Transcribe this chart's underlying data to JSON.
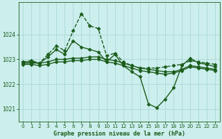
{
  "title": "Graphe pression niveau de la mer (hPa)",
  "bg_color": "#cceeed",
  "grid_color": "#aad8d8",
  "line_color": "#1a5c1a",
  "xlim": [
    -0.5,
    23.5
  ],
  "ylim": [
    1020.5,
    1025.3
  ],
  "yticks": [
    1021,
    1022,
    1023,
    1024
  ],
  "xticks": [
    0,
    1,
    2,
    3,
    4,
    5,
    6,
    7,
    8,
    9,
    10,
    11,
    12,
    13,
    14,
    15,
    16,
    17,
    18,
    19,
    20,
    21,
    22,
    23
  ],
  "series": [
    {
      "x": [
        0,
        1,
        2,
        3,
        4,
        5,
        6,
        7,
        8,
        9,
        10,
        11,
        12,
        13,
        14,
        15,
        16,
        17,
        18,
        19,
        20,
        21,
        22,
        23
      ],
      "y": [
        1022.9,
        1022.95,
        1022.85,
        1023.2,
        1023.55,
        1023.35,
        1024.15,
        1024.85,
        1024.35,
        1024.25,
        1023.15,
        1023.25,
        1022.9,
        1022.75,
        1022.65,
        1022.65,
        1022.65,
        1022.7,
        1022.75,
        1022.8,
        1022.95,
        1022.9,
        1022.85,
        1022.8
      ],
      "marker": "D",
      "markersize": 2.5,
      "linewidth": 1.0,
      "linestyle": "--"
    },
    {
      "x": [
        0,
        1,
        2,
        3,
        4,
        5,
        6,
        7,
        8,
        9,
        10,
        11,
        12,
        13,
        14,
        15,
        16,
        17,
        18,
        19,
        20,
        21,
        22,
        23
      ],
      "y": [
        1022.9,
        1022.9,
        1022.85,
        1023.1,
        1023.4,
        1023.2,
        1023.75,
        1023.5,
        1023.4,
        1023.3,
        1022.9,
        1023.2,
        1022.75,
        1022.5,
        1022.3,
        1021.2,
        1021.05,
        1021.4,
        1021.85,
        1022.75,
        1023.05,
        1022.85,
        1022.8,
        1022.7
      ],
      "marker": "D",
      "markersize": 2.5,
      "linewidth": 1.0,
      "linestyle": "-"
    },
    {
      "x": [
        0,
        1,
        2,
        3,
        4,
        5,
        6,
        7,
        8,
        9,
        10,
        11,
        12,
        13,
        14,
        15,
        16,
        17,
        18,
        19,
        20,
        21,
        22,
        23
      ],
      "y": [
        1022.85,
        1022.85,
        1022.85,
        1022.9,
        1023.0,
        1023.0,
        1023.05,
        1023.05,
        1023.1,
        1023.1,
        1023.0,
        1022.95,
        1022.85,
        1022.75,
        1022.65,
        1022.6,
        1022.55,
        1022.5,
        1022.5,
        1022.6,
        1022.75,
        1022.7,
        1022.65,
        1022.6
      ],
      "marker": "D",
      "markersize": 2.5,
      "linewidth": 1.0,
      "linestyle": "-"
    },
    {
      "x": [
        0,
        1,
        2,
        3,
        4,
        5,
        6,
        7,
        8,
        9,
        10,
        11,
        12,
        13,
        14,
        15,
        16,
        17,
        18,
        19,
        20,
        21,
        22,
        23
      ],
      "y": [
        1022.8,
        1022.8,
        1022.75,
        1022.8,
        1022.9,
        1022.9,
        1022.95,
        1022.95,
        1023.0,
        1023.0,
        1022.9,
        1022.85,
        1022.75,
        1022.65,
        1022.55,
        1022.5,
        1022.45,
        1022.4,
        1022.45,
        1022.55,
        1022.7,
        1022.65,
        1022.6,
        1022.55
      ],
      "marker": "D",
      "markersize": 2.5,
      "linewidth": 1.0,
      "linestyle": "-"
    }
  ]
}
